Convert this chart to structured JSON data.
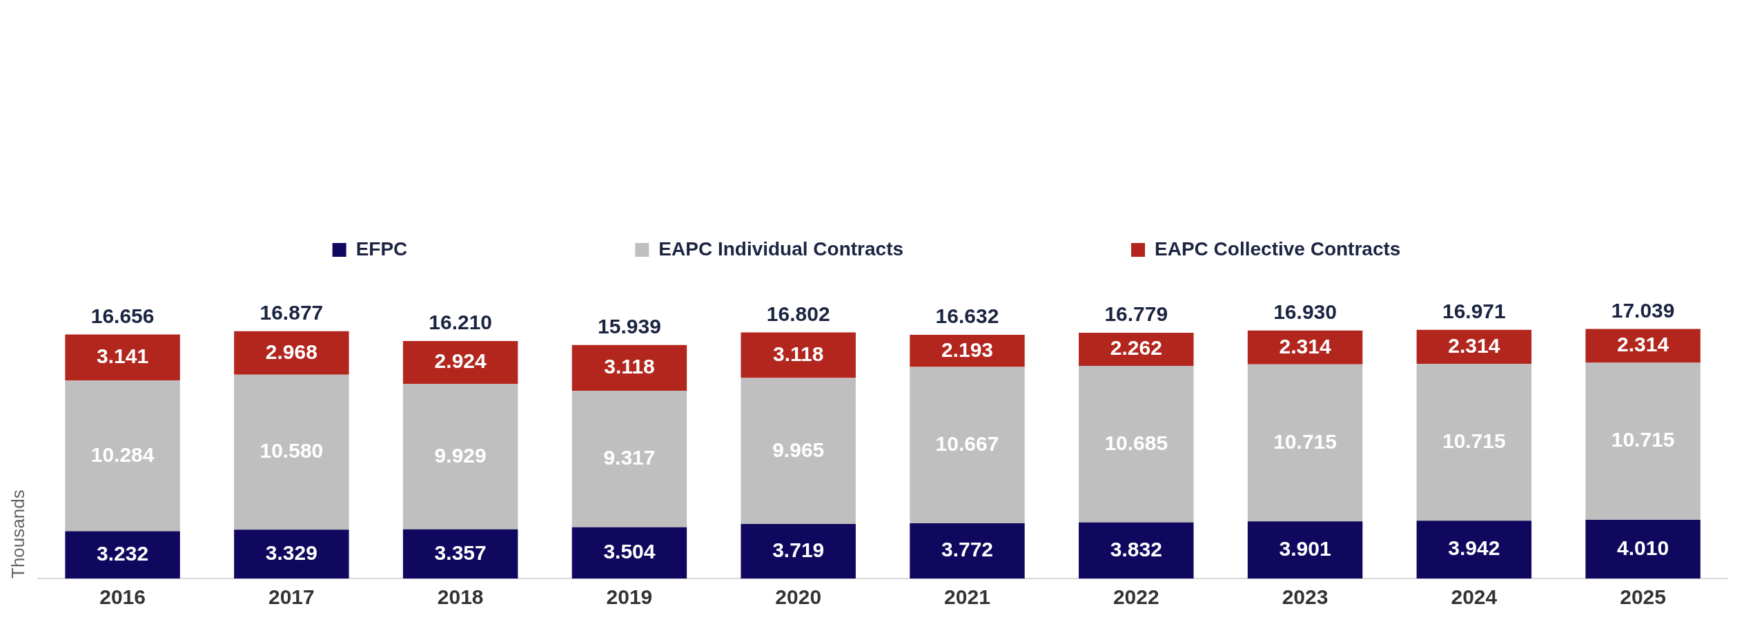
{
  "chart_data": {
    "type": "bar",
    "stacked": true,
    "ylabel": "Thousands",
    "legend": "top",
    "grid": false,
    "categories": [
      "2016",
      "2017",
      "2018",
      "2019",
      "2020",
      "2021",
      "2022",
      "2023",
      "2024",
      "2025"
    ],
    "series": [
      {
        "name": "EFPC",
        "color": "#10085e",
        "values": [
          3232,
          3329,
          3357,
          3504,
          3719,
          3772,
          3832,
          3901,
          3942,
          4010
        ],
        "value_labels": [
          "3.232",
          "3.329",
          "3.357",
          "3.504",
          "3.719",
          "3.772",
          "3.832",
          "3.901",
          "3.942",
          "4.010"
        ]
      },
      {
        "name": "EAPC Individual Contracts",
        "color": "#bfbfbf",
        "values": [
          10284,
          10580,
          9929,
          9317,
          9965,
          10667,
          10685,
          10715,
          10715,
          10715
        ],
        "value_labels": [
          "10.284",
          "10.580",
          "9.929",
          "9.317",
          "9.965",
          "10.667",
          "10.685",
          "10.715",
          "10.715",
          "10.715"
        ]
      },
      {
        "name": "EAPC Collective Contracts",
        "color": "#b3261e",
        "values": [
          3141,
          2968,
          2924,
          3118,
          3118,
          2193,
          2262,
          2314,
          2314,
          2314
        ],
        "value_labels": [
          "3.141",
          "2.968",
          "2.924",
          "3.118",
          "3.118",
          "2.193",
          "2.262",
          "2.314",
          "2.314",
          "2.314"
        ]
      }
    ],
    "totals": [
      "16.656",
      "16.877",
      "16.210",
      "15.939",
      "16.802",
      "16.632",
      "16.779",
      "16.930",
      "16.971",
      "17.039"
    ]
  }
}
